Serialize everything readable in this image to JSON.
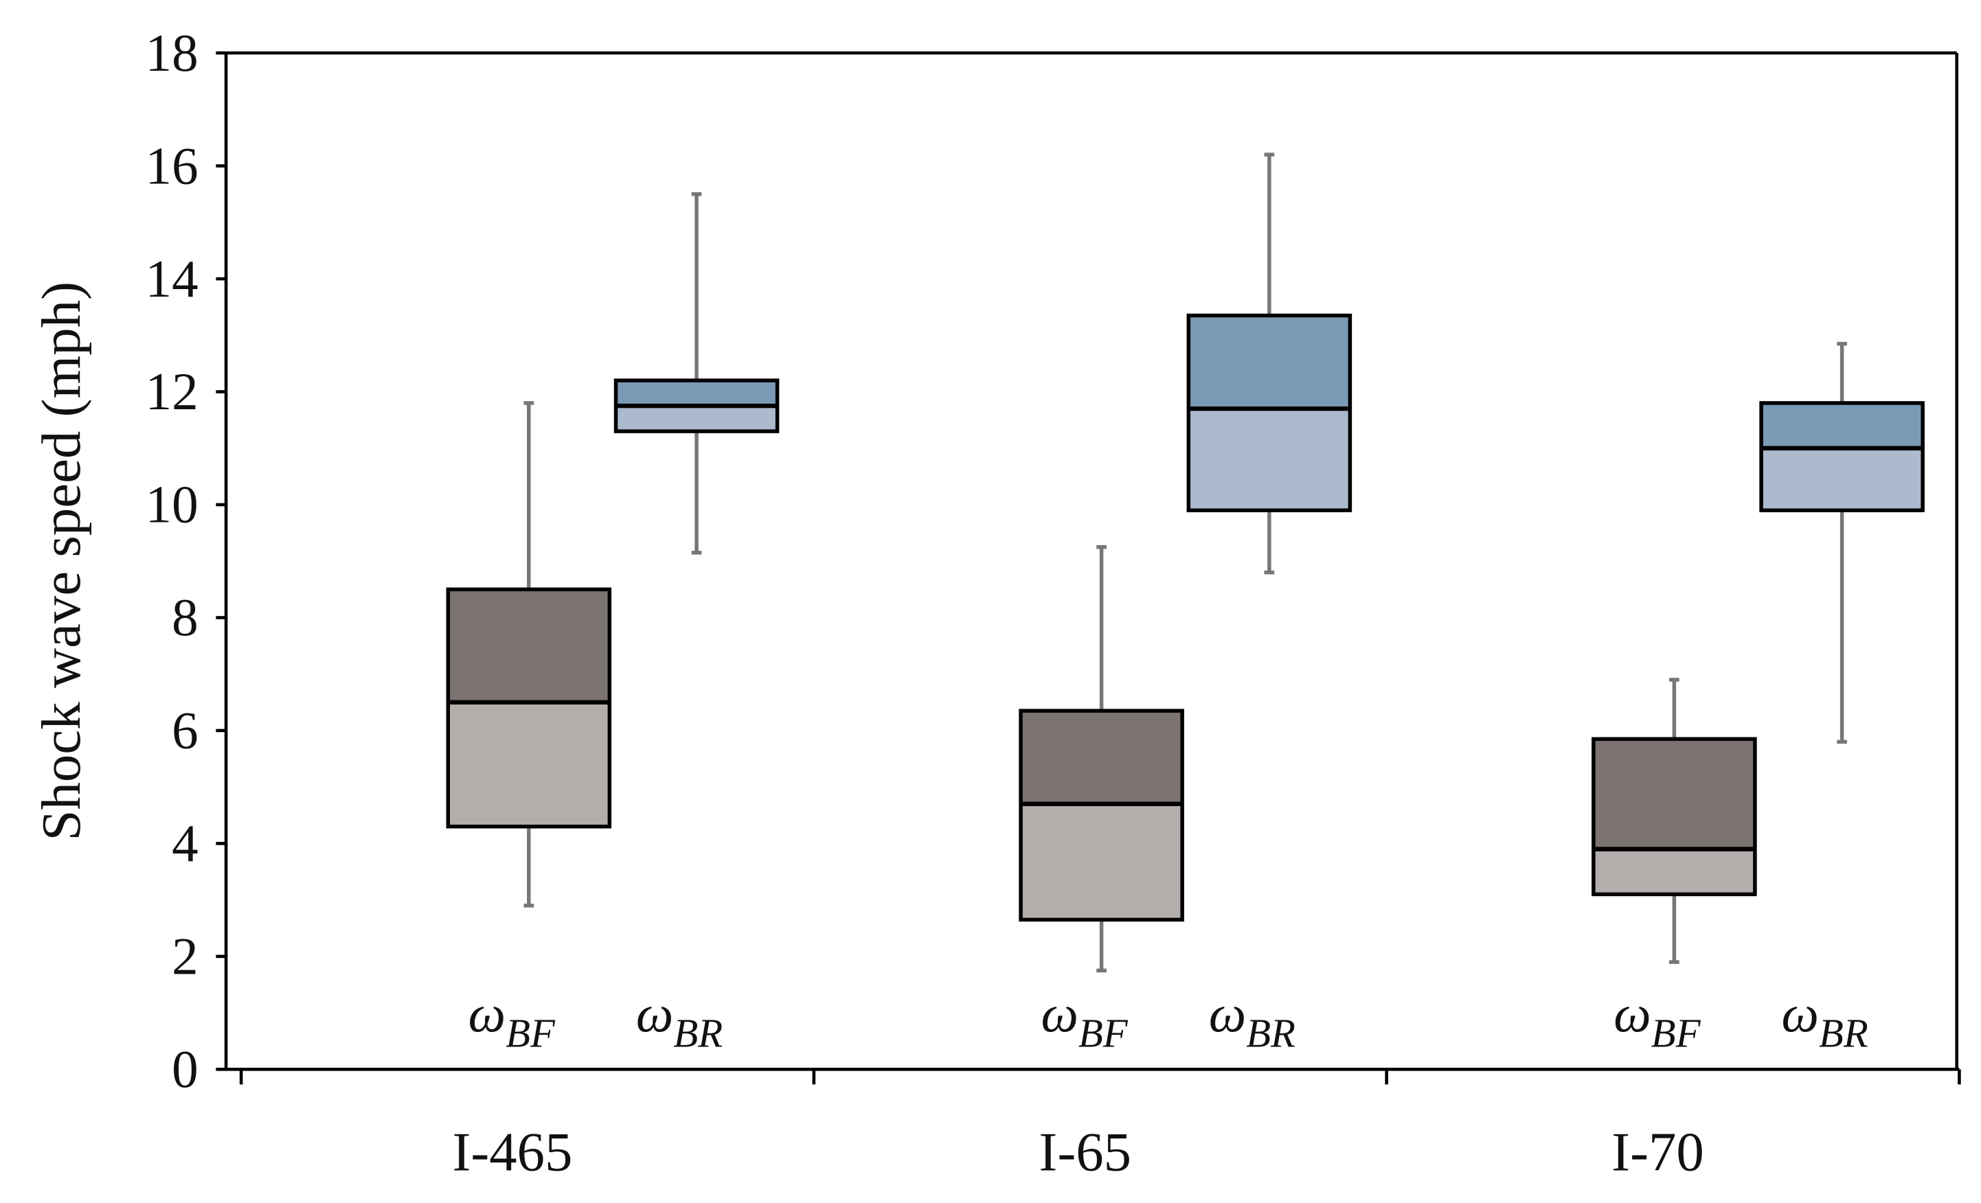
{
  "chart_data": {
    "type": "box",
    "title": "",
    "xlabel": "",
    "ylabel": "Shock wave speed (mph)",
    "ylim": [
      0,
      18
    ],
    "yticks": [
      0,
      2,
      4,
      6,
      8,
      10,
      12,
      14,
      16,
      18
    ],
    "grid": false,
    "categories": [
      "I-465",
      "I-65",
      "I-70"
    ],
    "series": [
      {
        "name": "ω_BF",
        "label_main": "ω",
        "label_sub": "BF",
        "color_upper": "#7a7370",
        "color_lower": "#b3aeab",
        "boxes": [
          {
            "min": 2.9,
            "q1": 4.3,
            "median": 6.5,
            "q3": 8.5,
            "max": 11.8
          },
          {
            "min": 1.75,
            "q1": 2.65,
            "median": 4.7,
            "q3": 6.35,
            "max": 9.25
          },
          {
            "min": 1.9,
            "q1": 3.1,
            "median": 3.9,
            "q3": 5.85,
            "max": 6.9
          }
        ]
      },
      {
        "name": "ω_BR",
        "label_main": "ω",
        "label_sub": "BR",
        "color_upper": "#7b9ab5",
        "color_lower": "#abbacd",
        "boxes": [
          {
            "min": 9.15,
            "q1": 11.3,
            "median": 11.75,
            "q3": 12.2,
            "max": 15.5
          },
          {
            "min": 8.8,
            "q1": 9.9,
            "median": 11.7,
            "q3": 13.35,
            "max": 16.2
          },
          {
            "min": 5.8,
            "q1": 9.9,
            "median": 11.0,
            "q3": 11.8,
            "max": 12.85
          }
        ]
      }
    ],
    "whisker_color": "#777777",
    "legend": "labels below boxes"
  }
}
